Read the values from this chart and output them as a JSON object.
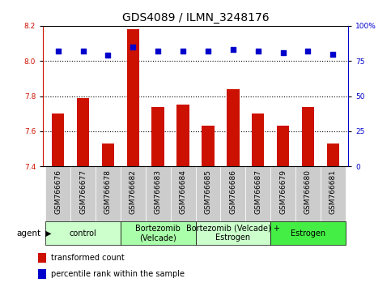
{
  "title": "GDS4089 / ILMN_3248176",
  "samples": [
    "GSM766676",
    "GSM766677",
    "GSM766678",
    "GSM766682",
    "GSM766683",
    "GSM766684",
    "GSM766685",
    "GSM766686",
    "GSM766687",
    "GSM766679",
    "GSM766680",
    "GSM766681"
  ],
  "bar_values": [
    7.7,
    7.79,
    7.53,
    8.18,
    7.74,
    7.75,
    7.63,
    7.84,
    7.7,
    7.63,
    7.74,
    7.53
  ],
  "percentile_values": [
    82,
    82,
    79,
    85,
    82,
    82,
    82,
    83,
    82,
    81,
    82,
    80
  ],
  "ylim_left": [
    7.4,
    8.2
  ],
  "ylim_right": [
    0,
    100
  ],
  "yticks_left": [
    7.4,
    7.6,
    7.8,
    8.0,
    8.2
  ],
  "yticks_right": [
    0,
    25,
    50,
    75,
    100
  ],
  "bar_color": "#cc1100",
  "percentile_color": "#0000cc",
  "background_plot": "#ffffff",
  "xtick_bg": "#cccccc",
  "groups": [
    {
      "label": "control",
      "start": 0,
      "end": 3,
      "color": "#ccffcc"
    },
    {
      "label": "Bortezomib\n(Velcade)",
      "start": 3,
      "end": 6,
      "color": "#aaffaa"
    },
    {
      "label": "Bortezomib (Velcade) +\nEstrogen",
      "start": 6,
      "end": 9,
      "color": "#ccffcc"
    },
    {
      "label": "Estrogen",
      "start": 9,
      "end": 12,
      "color": "#44ee44"
    }
  ],
  "agent_label": "agent",
  "legend_bar_label": "transformed count",
  "legend_dot_label": "percentile rank within the sample",
  "title_fontsize": 10,
  "tick_fontsize": 6.5,
  "group_fontsize": 7,
  "legend_fontsize": 7
}
